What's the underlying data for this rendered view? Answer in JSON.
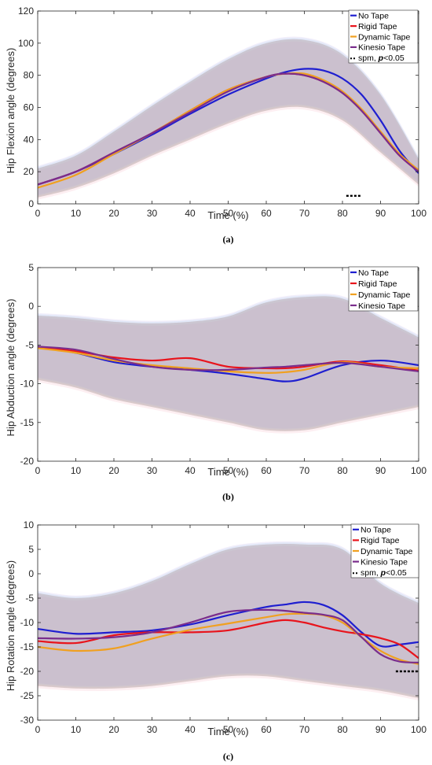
{
  "chart_data": [
    {
      "type": "line",
      "panel_label": "(a)",
      "xlabel": "Time (%)",
      "ylabel": "Hip Flexion angle (degrees)",
      "xlim": [
        0,
        100
      ],
      "ylim": [
        0,
        120
      ],
      "xticks": [
        "0",
        "10",
        "20",
        "30",
        "40",
        "50",
        "60",
        "70",
        "80",
        "90",
        "100"
      ],
      "yticks": [
        "0",
        "20",
        "40",
        "60",
        "80",
        "100",
        "120"
      ],
      "x": [
        0,
        10,
        20,
        30,
        40,
        50,
        60,
        65,
        70,
        75,
        80,
        85,
        90,
        95,
        100
      ],
      "series": [
        {
          "name": "No Tape",
          "color": "#1f1fd0",
          "values": [
            12,
            20,
            31,
            43,
            56,
            68,
            78,
            82,
            84,
            83,
            78,
            68,
            52,
            33,
            19
          ]
        },
        {
          "name": "Rigid Tape",
          "color": "#e8141c",
          "values": [
            12,
            20,
            32,
            44,
            58,
            71,
            79,
            81,
            80,
            76,
            69,
            58,
            44,
            30,
            20
          ]
        },
        {
          "name": "Dynamic Tape",
          "color": "#f0a020",
          "values": [
            10,
            18,
            31,
            44,
            58,
            71,
            79,
            81,
            81,
            77,
            70,
            59,
            45,
            31,
            21
          ]
        },
        {
          "name": "Kinesio Tape",
          "color": "#7a2d8c",
          "values": [
            12,
            20,
            32,
            44,
            57,
            70,
            79,
            81,
            80,
            76,
            69,
            58,
            44,
            30,
            20
          ]
        }
      ],
      "band": {
        "x": [
          0,
          10,
          20,
          30,
          40,
          50,
          60,
          70,
          80,
          90,
          100
        ],
        "lower": [
          4,
          10,
          19,
          30,
          40,
          50,
          58,
          60,
          52,
          32,
          12
        ],
        "upper": [
          22,
          30,
          45,
          61,
          76,
          90,
          100,
          102,
          93,
          68,
          28
        ]
      },
      "spm_marker": {
        "label": "spm, p<0.05",
        "x_range": [
          81,
          85
        ],
        "y": 5
      },
      "legend_position": "top-right",
      "grid": false
    },
    {
      "type": "line",
      "panel_label": "(b)",
      "xlabel": "Time (%)",
      "ylabel": "Hip Abduction angle (degrees)",
      "xlim": [
        0,
        100
      ],
      "ylim": [
        -20,
        5
      ],
      "xticks": [
        "0",
        "10",
        "20",
        "30",
        "40",
        "50",
        "60",
        "70",
        "80",
        "90",
        "100"
      ],
      "yticks": [
        "-20",
        "-15",
        "-10",
        "-5",
        "0",
        "5"
      ],
      "x": [
        0,
        10,
        20,
        30,
        40,
        50,
        60,
        65,
        70,
        80,
        90,
        100
      ],
      "series": [
        {
          "name": "No Tape",
          "color": "#1f1fd0",
          "values": [
            -5.2,
            -6.0,
            -7.2,
            -7.8,
            -8.2,
            -8.7,
            -9.4,
            -9.7,
            -9.3,
            -7.6,
            -7.0,
            -7.6
          ]
        },
        {
          "name": "Rigid Tape",
          "color": "#e8141c",
          "values": [
            -5.3,
            -5.8,
            -6.6,
            -7.0,
            -6.7,
            -7.8,
            -8.0,
            -8.0,
            -7.8,
            -7.1,
            -7.6,
            -8.3
          ]
        },
        {
          "name": "Dynamic Tape",
          "color": "#f0a020",
          "values": [
            -5.4,
            -6.0,
            -7.0,
            -7.6,
            -8.0,
            -8.4,
            -8.6,
            -8.5,
            -8.2,
            -7.2,
            -7.8,
            -8.0
          ]
        },
        {
          "name": "Kinesio Tape",
          "color": "#7a2d8c",
          "values": [
            -5.2,
            -5.6,
            -6.8,
            -7.8,
            -8.2,
            -8.2,
            -7.9,
            -7.8,
            -7.6,
            -7.3,
            -7.8,
            -8.4
          ]
        }
      ],
      "band": {
        "x": [
          0,
          10,
          20,
          30,
          40,
          50,
          60,
          70,
          80,
          90,
          100
        ],
        "lower": [
          -9.5,
          -10.5,
          -12.0,
          -13.0,
          -14.0,
          -15.0,
          -16.0,
          -16.0,
          -15.0,
          -14.0,
          -13.0
        ],
        "upper": [
          -1.2,
          -1.5,
          -2.0,
          -2.2,
          -2.0,
          -1.3,
          0.5,
          1.2,
          1.0,
          -1.5,
          -4.0
        ]
      },
      "legend_position": "top-right",
      "grid": false
    },
    {
      "type": "line",
      "panel_label": "(c)",
      "xlabel": "Time (%)",
      "ylabel": "Hip Rotation angle (degrees)",
      "xlim": [
        0,
        100
      ],
      "ylim": [
        -30,
        10
      ],
      "xticks": [
        "0",
        "10",
        "20",
        "30",
        "40",
        "50",
        "60",
        "70",
        "80",
        "90",
        "100"
      ],
      "yticks": [
        "-30",
        "-25",
        "-20",
        "-15",
        "-10",
        "-5",
        "0",
        "5",
        "10"
      ],
      "x": [
        0,
        10,
        20,
        30,
        40,
        50,
        60,
        65,
        70,
        75,
        80,
        85,
        90,
        95,
        100
      ],
      "series": [
        {
          "name": "No Tape",
          "color": "#1f1fd0",
          "values": [
            -11.3,
            -12.3,
            -12.0,
            -11.6,
            -10.4,
            -8.5,
            -6.8,
            -6.3,
            -5.8,
            -6.4,
            -8.5,
            -12.0,
            -14.8,
            -14.5,
            -14.0
          ]
        },
        {
          "name": "Rigid Tape",
          "color": "#e8141c",
          "values": [
            -13.8,
            -14.2,
            -12.6,
            -12.0,
            -12.0,
            -11.6,
            -10.0,
            -9.5,
            -10.0,
            -11.0,
            -11.8,
            -12.4,
            -13.2,
            -14.5,
            -17.3
          ]
        },
        {
          "name": "Dynamic Tape",
          "color": "#f0a020",
          "values": [
            -15.0,
            -15.8,
            -15.3,
            -13.3,
            -11.5,
            -10.2,
            -8.9,
            -8.3,
            -8.2,
            -8.5,
            -10.0,
            -13.0,
            -15.8,
            -17.6,
            -18.5
          ]
        },
        {
          "name": "Kinesio Tape",
          "color": "#7a2d8c",
          "values": [
            -13.2,
            -13.3,
            -13.0,
            -12.0,
            -10.0,
            -7.8,
            -7.4,
            -7.6,
            -8.0,
            -8.4,
            -9.5,
            -13.0,
            -16.5,
            -18.0,
            -18.2
          ]
        }
      ],
      "band": {
        "x": [
          0,
          10,
          20,
          30,
          40,
          50,
          60,
          70,
          80,
          90,
          100
        ],
        "lower": [
          -23.0,
          -23.5,
          -23.5,
          -23.0,
          -22.0,
          -21.0,
          -21.0,
          -22.0,
          -23.0,
          -24.0,
          -25.5
        ],
        "upper": [
          -4.0,
          -5.0,
          -4.0,
          -1.5,
          2.0,
          5.0,
          6.0,
          6.0,
          5.0,
          -2.0,
          -6.0
        ]
      },
      "spm_marker": {
        "label": "spm, p<0.05",
        "x_range": [
          94,
          100
        ],
        "y": -20
      },
      "legend_position": "top-right",
      "grid": false
    }
  ]
}
